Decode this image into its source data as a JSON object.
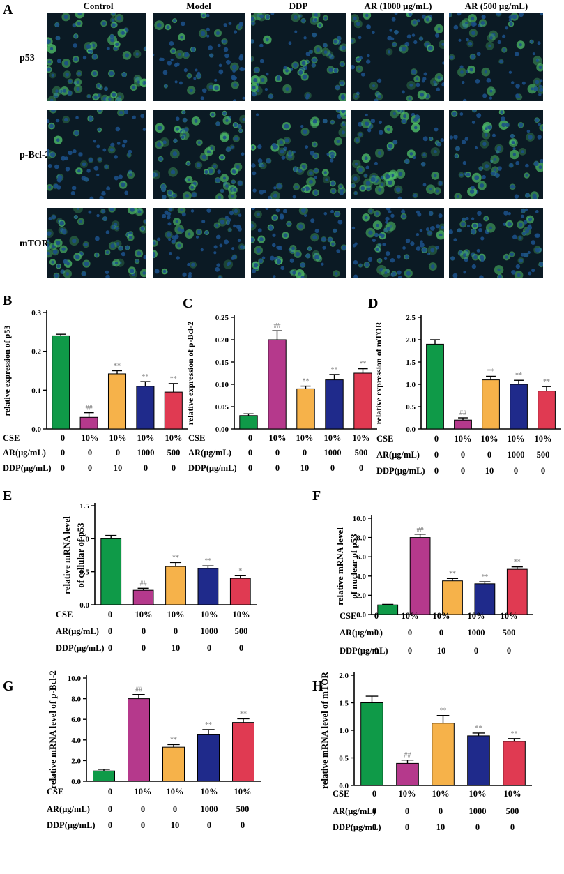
{
  "colors": {
    "green": "#0f9a48",
    "magenta": "#b5398c",
    "orange": "#f6b24a",
    "navy": "#1f2a8b",
    "red": "#e03a52",
    "micro_bg": "#0b1a24",
    "micro_nuclei": "#1b4f86",
    "micro_green": "#4fc06a",
    "sig_gray": "#777777"
  },
  "panel_a": {
    "label": "A",
    "columns": [
      "Control",
      "Model",
      "DDP",
      "AR (1000 μg/mL)",
      "AR (500 μg/mL)"
    ],
    "rows": [
      "p53",
      "p-Bcl-2",
      "mTOR"
    ],
    "intensity": [
      [
        0.85,
        0.35,
        0.7,
        0.55,
        0.45
      ],
      [
        0.35,
        0.95,
        0.6,
        0.65,
        0.6
      ],
      [
        0.8,
        0.35,
        0.6,
        0.5,
        0.45
      ]
    ]
  },
  "table_rows": {
    "labels": [
      "CSE",
      "AR(μg/mL)",
      "DDP(μg/mL)"
    ],
    "values": [
      [
        "0",
        "10%",
        "10%",
        "10%",
        "10%"
      ],
      [
        "0",
        "0",
        "0",
        "1000",
        "500"
      ],
      [
        "0",
        "0",
        "10",
        "0",
        "0"
      ]
    ]
  },
  "chart_data": [
    {
      "panel": "B",
      "type": "bar",
      "ylabel": "relative expression of p53",
      "ylim": [
        0,
        0.3
      ],
      "yticks": [
        "0.0",
        "0.1",
        "0.2",
        "0.3"
      ],
      "values": [
        0.24,
        0.03,
        0.142,
        0.11,
        0.095
      ],
      "errors": [
        0.004,
        0.012,
        0.008,
        0.012,
        0.022
      ],
      "sig": [
        "",
        "##",
        "**",
        "**",
        "**"
      ]
    },
    {
      "panel": "C",
      "type": "bar",
      "ylabel": "relative expression of p-Bcl-2",
      "ylim": [
        0,
        0.25
      ],
      "yticks": [
        "0.00",
        "0.05",
        "0.10",
        "0.15",
        "0.20",
        "0.25"
      ],
      "values": [
        0.03,
        0.2,
        0.09,
        0.11,
        0.125
      ],
      "errors": [
        0.004,
        0.02,
        0.006,
        0.012,
        0.01
      ],
      "sig": [
        "",
        "##",
        "**",
        "**",
        "**"
      ]
    },
    {
      "panel": "D",
      "type": "bar",
      "ylabel": "relative expression of mTOR",
      "ylim": [
        0,
        2.5
      ],
      "yticks": [
        "0.0",
        "0.5",
        "1.0",
        "1.5",
        "2.0",
        "2.5"
      ],
      "values": [
        1.9,
        0.2,
        1.1,
        1.0,
        0.85
      ],
      "errors": [
        0.1,
        0.05,
        0.08,
        0.09,
        0.1
      ],
      "sig": [
        "",
        "##",
        "**",
        "**",
        "**"
      ]
    },
    {
      "panel": "E",
      "type": "bar",
      "ylabel": [
        "relative mRNA level",
        "of cellular of p53"
      ],
      "ylim": [
        0,
        1.5
      ],
      "yticks": [
        "0.0",
        "0.5",
        "1.0",
        "1.5"
      ],
      "values": [
        1.0,
        0.22,
        0.58,
        0.55,
        0.4
      ],
      "errors": [
        0.05,
        0.03,
        0.06,
        0.04,
        0.04
      ],
      "sig": [
        "",
        "##",
        "**",
        "**",
        "*"
      ]
    },
    {
      "panel": "F",
      "type": "bar",
      "ylabel": [
        "relative mRNA level",
        "of nuclear of p53"
      ],
      "ylim": [
        0,
        10
      ],
      "yticks": [
        "0.0",
        "2.0",
        "4.0",
        "6.0",
        "8.0",
        "10.0"
      ],
      "values": [
        1.0,
        8.0,
        3.5,
        3.2,
        4.7
      ],
      "errors": [
        0.05,
        0.35,
        0.25,
        0.2,
        0.25
      ],
      "sig": [
        "",
        "##",
        "**",
        "**",
        "**"
      ]
    },
    {
      "panel": "G",
      "type": "bar",
      "ylabel": "relative mRNA level of p-Bcl-2",
      "ylim": [
        0,
        10
      ],
      "yticks": [
        "0.0",
        "2.0",
        "4.0",
        "6.0",
        "8.0",
        "10.0"
      ],
      "values": [
        1.0,
        8.0,
        3.3,
        4.5,
        5.7
      ],
      "errors": [
        0.15,
        0.4,
        0.25,
        0.5,
        0.35
      ],
      "sig": [
        "",
        "##",
        "**",
        "**",
        "**"
      ]
    },
    {
      "panel": "H",
      "type": "bar",
      "ylabel": "relative mRNA level of mTOR",
      "ylim": [
        0,
        2.0
      ],
      "yticks": [
        "0.0",
        "0.5",
        "1.0",
        "1.5",
        "2.0"
      ],
      "values": [
        1.5,
        0.4,
        1.13,
        0.9,
        0.8
      ],
      "errors": [
        0.12,
        0.06,
        0.14,
        0.05,
        0.05
      ],
      "sig": [
        "",
        "##",
        "**",
        "**",
        "**"
      ]
    }
  ]
}
